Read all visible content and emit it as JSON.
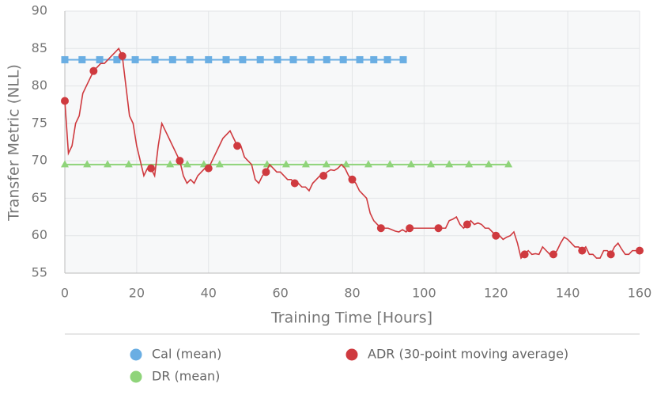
{
  "chart_data": {
    "type": "line",
    "xlabel": "Training Time [Hours]",
    "ylabel": "Transfer Metric (NLL)",
    "xlim": [
      0,
      160
    ],
    "ylim": [
      55,
      90
    ],
    "xticks": [
      0,
      20,
      40,
      60,
      80,
      100,
      120,
      140,
      160
    ],
    "yticks": [
      55,
      60,
      65,
      70,
      75,
      80,
      85,
      90
    ],
    "grid": true,
    "series": [
      {
        "name": "Cal (mean)",
        "color": "#6aaee3",
        "marker": "square",
        "x": [
          0,
          4.8,
          9.7,
          14.5,
          19.6,
          25.1,
          30,
          34.8,
          40,
          44.9,
          49.5,
          54.4,
          59.2,
          63.6,
          68.5,
          72.9,
          77.5,
          82.1,
          86,
          89.8,
          94.2
        ],
        "values": [
          83.5,
          83.5,
          83.5,
          83.5,
          83.5,
          83.5,
          83.5,
          83.5,
          83.5,
          83.5,
          83.5,
          83.5,
          83.5,
          83.5,
          83.5,
          83.5,
          83.5,
          83.5,
          83.5,
          83.5,
          83.5
        ]
      },
      {
        "name": "DR (mean)",
        "color": "#8fd47a",
        "marker": "triangle",
        "x": [
          0,
          6.2,
          11.9,
          17.8,
          29.3,
          34.1,
          38.7,
          43.1,
          56.3,
          61.6,
          67.1,
          72.8,
          78.3,
          84.5,
          90.5,
          96.4,
          101.9,
          107,
          112.5,
          118,
          123.5
        ],
        "values": [
          69.5,
          69.5,
          69.5,
          69.5,
          69.5,
          69.5,
          69.5,
          69.5,
          69.5,
          69.5,
          69.5,
          69.5,
          69.5,
          69.5,
          69.5,
          69.5,
          69.5,
          69.5,
          69.5,
          69.5,
          69.5
        ]
      },
      {
        "name": "ADR (30-point moving average)",
        "color": "#cf3a3f",
        "marker": "circle",
        "markevery": 8,
        "x": [
          0,
          1,
          2,
          3,
          4,
          5,
          6,
          7,
          8,
          9,
          10,
          11,
          12,
          13,
          14,
          15,
          16,
          17,
          18,
          19,
          20,
          21,
          22,
          23,
          24,
          25,
          26,
          27,
          28,
          29,
          30,
          31,
          32,
          33,
          34,
          35,
          36,
          37,
          38,
          39,
          40,
          41,
          42,
          43,
          44,
          45,
          46,
          47,
          48,
          49,
          50,
          51,
          52,
          53,
          54,
          55,
          56,
          57,
          58,
          59,
          60,
          61,
          62,
          63,
          64,
          65,
          66,
          67,
          68,
          69,
          70,
          71,
          72,
          73,
          74,
          75,
          76,
          77,
          78,
          79,
          80,
          81,
          82,
          83,
          84,
          85,
          86,
          87,
          88,
          89,
          90,
          91,
          92,
          93,
          94,
          95,
          96,
          97,
          98,
          99,
          100,
          101,
          102,
          103,
          104,
          105,
          106,
          107,
          108,
          109,
          110,
          111,
          112,
          113,
          114,
          115,
          116,
          117,
          118,
          119,
          120,
          121,
          122,
          123,
          124,
          125,
          126,
          127,
          128,
          129,
          130,
          131,
          132,
          133,
          134,
          135,
          136,
          137,
          138,
          139,
          140,
          141,
          142,
          143,
          144,
          145,
          146,
          147,
          148,
          149,
          150,
          151,
          152,
          153,
          154,
          155,
          156,
          157,
          158,
          159,
          160
        ],
        "values": [
          78,
          71,
          72,
          75,
          76,
          79,
          80,
          81,
          82,
          82.5,
          83,
          83,
          83.5,
          84,
          84.5,
          85,
          84,
          80,
          76,
          75,
          72,
          70,
          68,
          69,
          69,
          68,
          72,
          75,
          74,
          73,
          72,
          71,
          70,
          68,
          67,
          67.5,
          67,
          68,
          68.5,
          69,
          69,
          70,
          71,
          72,
          73,
          73.5,
          74,
          73,
          72,
          72,
          70.5,
          70,
          69.5,
          67.5,
          67,
          68,
          68.5,
          69.5,
          69,
          68.5,
          68.5,
          68,
          67.5,
          67.5,
          67,
          67,
          66.5,
          66.5,
          66,
          67,
          67.5,
          68,
          68,
          68.5,
          68.8,
          68.7,
          69,
          69.5,
          69,
          68,
          67.5,
          67,
          66,
          65.5,
          65,
          63,
          62,
          61.5,
          61,
          61,
          61,
          60.8,
          60.6,
          60.5,
          60.8,
          60.5,
          61,
          61,
          61,
          61,
          61,
          61,
          61,
          61,
          61,
          61,
          61,
          62,
          62.2,
          62.5,
          61.5,
          61,
          61.5,
          62,
          61.5,
          61.7,
          61.5,
          61,
          61,
          60.5,
          60,
          60,
          59.5,
          59.8,
          60,
          60.5,
          59,
          57,
          57.5,
          58,
          57.5,
          57.6,
          57.5,
          58.5,
          58,
          57.5,
          57.5,
          58,
          59,
          59.8,
          59.5,
          59,
          58.5,
          58.5,
          58,
          58.5,
          57.5,
          57.5,
          57,
          57,
          58,
          58,
          57.5,
          58.5,
          59,
          58.2,
          57.5,
          57.5,
          58,
          58,
          58
        ]
      }
    ]
  }
}
